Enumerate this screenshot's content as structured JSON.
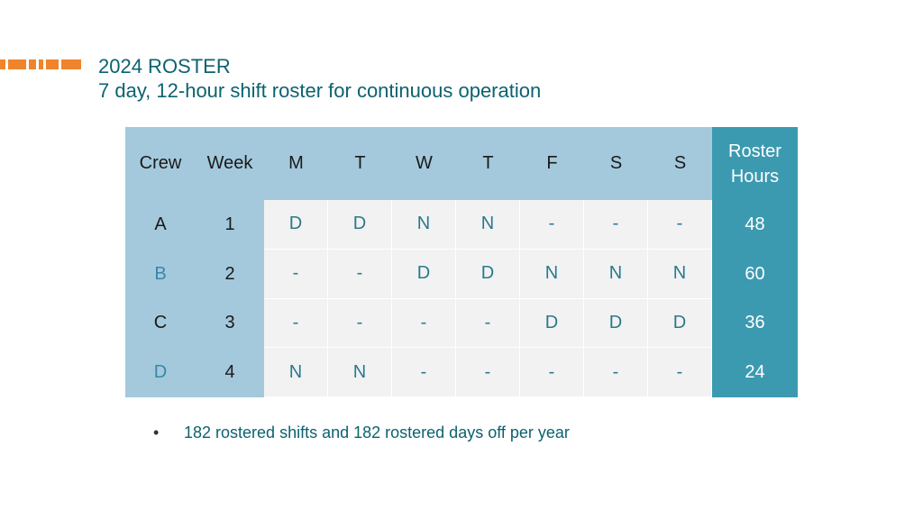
{
  "header": {
    "title": "2024 ROSTER",
    "subtitle": "7 day, 12-hour shift roster for continuous operation"
  },
  "table": {
    "columns": {
      "crew": "Crew",
      "week": "Week",
      "days": [
        "M",
        "T",
        "W",
        "T",
        "F",
        "S",
        "S"
      ],
      "hours_line1": "Roster",
      "hours_line2": "Hours"
    },
    "rows": [
      {
        "crew": "A",
        "week": "1",
        "days": [
          "D",
          "D",
          "N",
          "N",
          "-",
          "-",
          "-"
        ],
        "hours": "48"
      },
      {
        "crew": "B",
        "week": "2",
        "days": [
          "-",
          "-",
          "D",
          "D",
          "N",
          "N",
          "N"
        ],
        "hours": "60"
      },
      {
        "crew": "C",
        "week": "3",
        "days": [
          "-",
          "-",
          "-",
          "-",
          "D",
          "D",
          "D"
        ],
        "hours": "36"
      },
      {
        "crew": "D",
        "week": "4",
        "days": [
          "N",
          "N",
          "-",
          "-",
          "-",
          "-",
          "-"
        ],
        "hours": "24"
      }
    ]
  },
  "notes": {
    "bullet_marker": "•",
    "bullet_text": "182 rostered shifts and 182 rostered days off per year"
  },
  "colors": {
    "accent": "#f0842c",
    "title": "#0c6270",
    "header_bg": "#a4c9dd",
    "hours_bg": "#3b9ab0",
    "cell_bg": "#f2f2f2"
  }
}
